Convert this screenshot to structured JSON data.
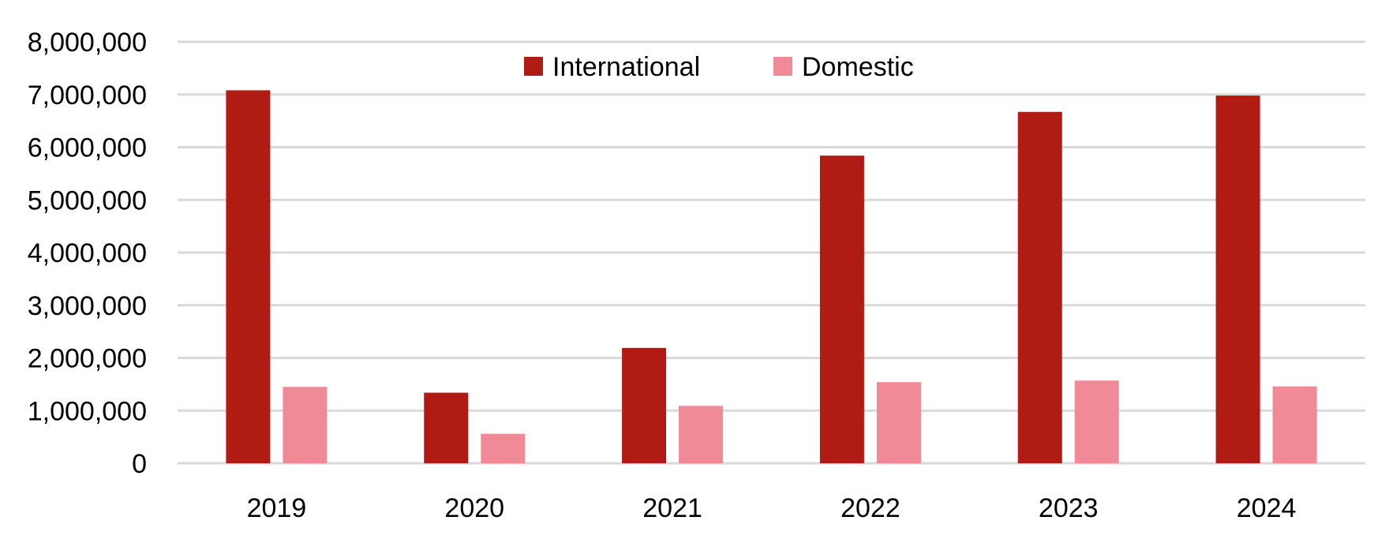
{
  "chart_data": {
    "type": "bar",
    "categories": [
      "2019",
      "2020",
      "2021",
      "2022",
      "2023",
      "2024"
    ],
    "series": [
      {
        "name": "International",
        "color": "#b01c14",
        "values": [
          7080000,
          1340000,
          2190000,
          5840000,
          6670000,
          6980000
        ]
      },
      {
        "name": "Domestic",
        "color": "#f08a96",
        "values": [
          1450000,
          560000,
          1090000,
          1540000,
          1570000,
          1460000
        ]
      }
    ],
    "yticks": [
      "0",
      "1,000,000",
      "2,000,000",
      "3,000,000",
      "4,000,000",
      "5,000,000",
      "6,000,000",
      "7,000,000",
      "8,000,000"
    ],
    "ylim": [
      0,
      8000000
    ],
    "grid": true,
    "legend_position": "top-center",
    "title": "",
    "xlabel": "",
    "ylabel": ""
  }
}
